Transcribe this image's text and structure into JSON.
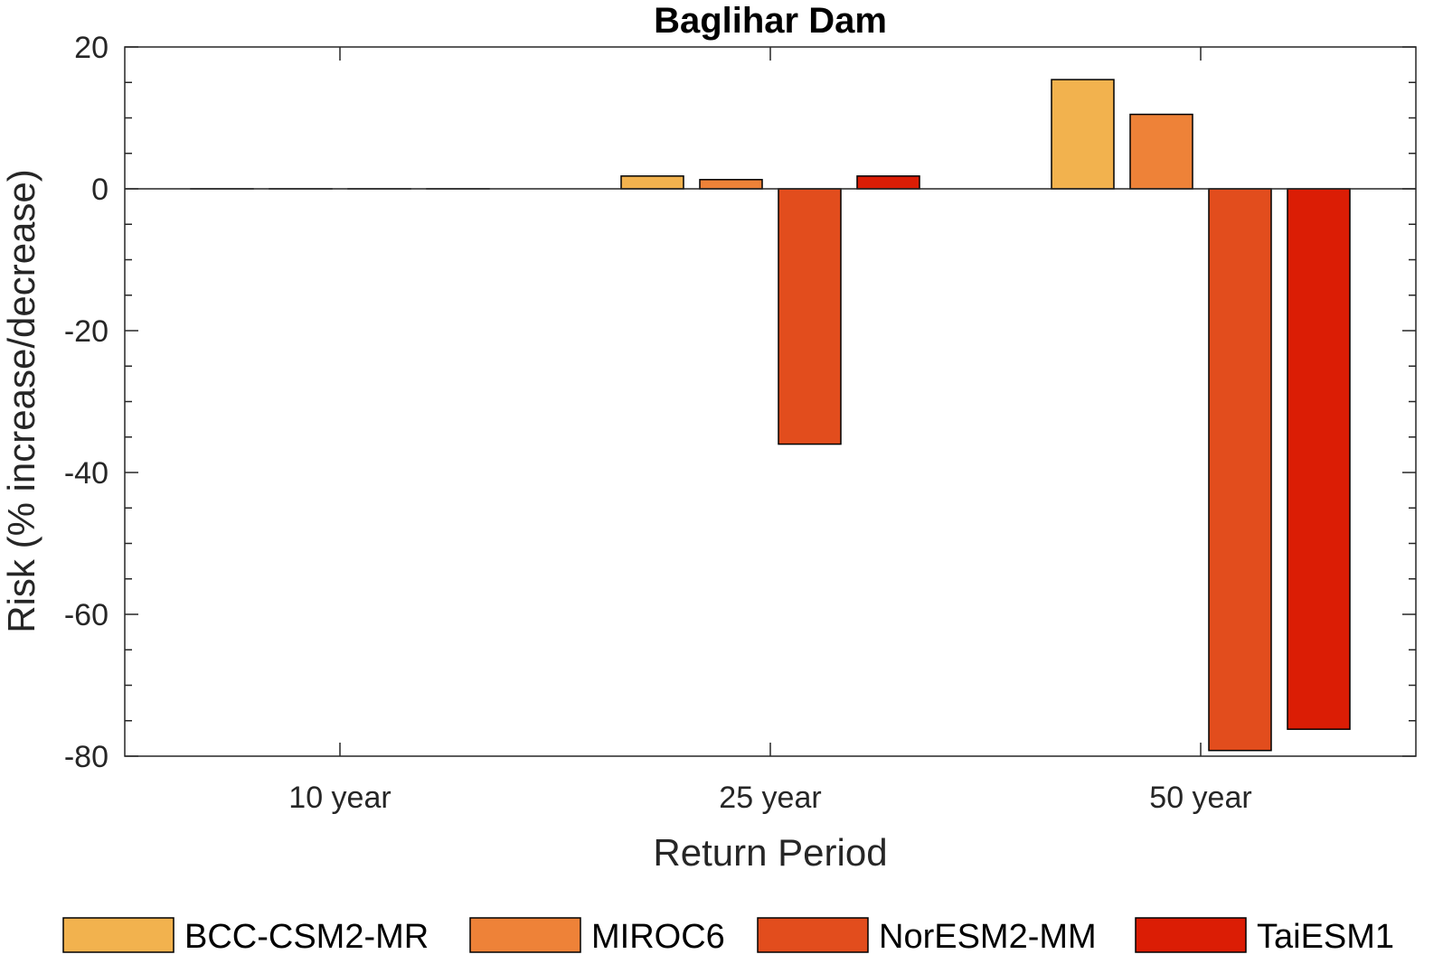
{
  "chart_data": {
    "type": "bar",
    "title": "Baglihar Dam",
    "xlabel": "Return Period",
    "ylabel": "Risk (% increase/decrease)",
    "categories": [
      "10 year",
      "25 year",
      "50 year"
    ],
    "ylim": [
      -80,
      20
    ],
    "yticks": [
      20,
      0,
      -20,
      -40,
      -60,
      -80
    ],
    "grid": false,
    "legend_position": "bottom",
    "series": [
      {
        "name": "BCC-CSM2-MR",
        "color": "#F2B24E",
        "values": [
          0,
          1.8,
          15.4
        ]
      },
      {
        "name": "MIROC6",
        "color": "#EE8238",
        "values": [
          0,
          1.3,
          10.5
        ]
      },
      {
        "name": "NorESM2-MM",
        "color": "#E24D1D",
        "values": [
          0,
          -36,
          -79.2
        ]
      },
      {
        "name": "TaiESM1",
        "color": "#DB1D05",
        "values": [
          0,
          1.8,
          -76.2
        ]
      }
    ]
  }
}
